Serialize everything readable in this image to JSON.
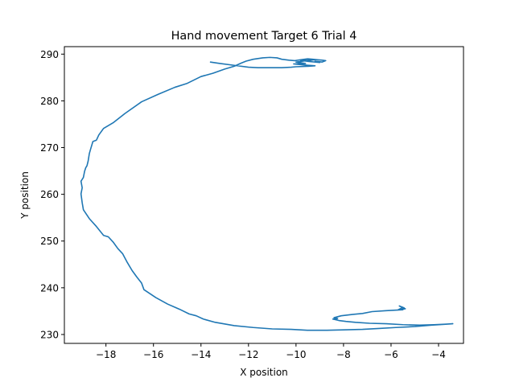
{
  "chart_data": {
    "type": "line",
    "title": "Hand movement Target 6 Trial 4",
    "xlabel": "X position",
    "ylabel": "Y position",
    "xlim": [
      -19.75,
      -2.95
    ],
    "ylim": [
      228.1,
      291.6
    ],
    "xticks": [
      -18,
      -16,
      -14,
      -12,
      -10,
      -8,
      -6,
      -4
    ],
    "xtick_labels": [
      "−18",
      "−16",
      "−14",
      "−12",
      "−10",
      "−8",
      "−6",
      "−4"
    ],
    "yticks": [
      230,
      240,
      250,
      260,
      270,
      280,
      290
    ],
    "ytick_labels": [
      "230",
      "240",
      "250",
      "260",
      "270",
      "280",
      "290"
    ],
    "grid": false,
    "color": "#1f77b4",
    "series": [
      {
        "x": [
          -5.45,
          -5.65,
          -5.4,
          -5.7,
          -5.5,
          -5.5,
          -6.2,
          -6.8,
          -7.2,
          -7.6,
          -8.1,
          -8.4,
          -8.25,
          -8.45,
          -8.2,
          -7.9,
          -7.5,
          -6.9,
          -6.2,
          -5.5,
          -4.8,
          -4.2,
          -3.75,
          -3.4,
          -3.7,
          -4.3,
          -5.0,
          -5.8,
          -6.5,
          -7.2,
          -8.0,
          -8.7,
          -9.5,
          -10.2,
          -11.0,
          -11.8,
          -12.6,
          -13.4,
          -13.9,
          -14.2,
          -14.5,
          -14.9,
          -15.4,
          -15.9,
          -16.4,
          -16.5,
          -16.7,
          -16.9,
          -17.1,
          -17.3,
          -17.5,
          -17.7,
          -17.9,
          -18.1,
          -18.4,
          -18.7,
          -18.95,
          -19.0,
          -19.05,
          -19.0,
          -19.05,
          -18.95,
          -18.9,
          -18.85,
          -18.8,
          -18.75,
          -18.7,
          -18.65,
          -18.55,
          -18.4,
          -18.3,
          -18.1,
          -17.7,
          -17.2,
          -16.5,
          -15.8,
          -15.1,
          -14.6,
          -14.0,
          -13.5,
          -13.0,
          -12.6,
          -12.3,
          -12.1,
          -11.8,
          -11.4,
          -11.1,
          -10.8,
          -10.6,
          -10.3,
          -10.05,
          -9.8,
          -9.5,
          -9.3,
          -9.1,
          -8.9,
          -8.75,
          -8.9,
          -9.2,
          -9.0,
          -9.6,
          -9.2,
          -9.8,
          -9.4,
          -10.0,
          -9.6,
          -10.1,
          -9.7,
          -9.2,
          -9.5,
          -10.0,
          -10.2,
          -10.6,
          -11.0,
          -11.6,
          -12.0,
          -12.6,
          -13.2,
          -13.6
        ],
        "y": [
          235.7,
          236.1,
          235.5,
          235.3,
          235.8,
          235.3,
          235.1,
          234.9,
          234.5,
          234.3,
          234.0,
          233.6,
          233.4,
          233.3,
          233.0,
          232.8,
          232.6,
          232.4,
          232.3,
          232.1,
          232.0,
          232.1,
          232.2,
          232.3,
          232.2,
          232.0,
          231.7,
          231.5,
          231.3,
          231.1,
          231.0,
          230.9,
          230.9,
          231.1,
          231.2,
          231.5,
          231.9,
          232.6,
          233.3,
          234.0,
          234.4,
          235.4,
          236.5,
          237.9,
          239.6,
          241.0,
          242.3,
          243.7,
          245.4,
          247.3,
          248.4,
          249.8,
          250.9,
          251.2,
          253.1,
          254.8,
          256.7,
          258.2,
          260.1,
          261.4,
          262.8,
          263.6,
          264.9,
          265.7,
          266.1,
          267.1,
          268.7,
          269.6,
          271.3,
          271.6,
          272.7,
          274.1,
          275.3,
          277.3,
          279.8,
          281.4,
          282.9,
          283.7,
          285.2,
          285.9,
          286.8,
          287.4,
          288.1,
          288.5,
          288.9,
          289.2,
          289.3,
          289.2,
          288.9,
          288.7,
          288.6,
          288.8,
          289.0,
          288.9,
          288.8,
          288.7,
          288.6,
          288.3,
          288.5,
          288.2,
          288.5,
          288.8,
          288.6,
          288.7,
          288.3,
          288.0,
          287.9,
          287.7,
          287.5,
          287.4,
          287.3,
          287.2,
          287.1,
          287.1,
          287.1,
          287.2,
          287.6,
          288.0,
          288.3
        ]
      }
    ]
  }
}
